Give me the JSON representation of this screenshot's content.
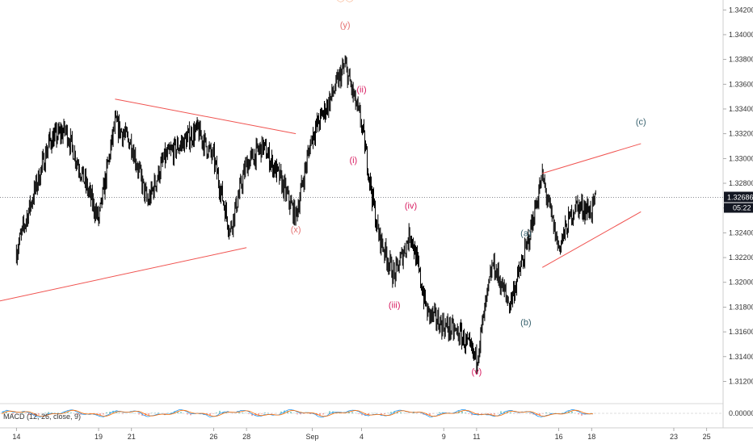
{
  "chart_data": {
    "type": "candlestick",
    "price_axis": {
      "ticks": [
        "1.34200",
        "1.34000",
        "1.33800",
        "1.33600",
        "1.33400",
        "1.33200",
        "1.33000",
        "1.32800",
        "1.32600",
        "1.32400",
        "1.32200",
        "1.32000",
        "1.31800",
        "1.31600",
        "1.31400",
        "1.31200"
      ],
      "range": [
        1.3104,
        1.3428
      ],
      "current_price": "1.32686",
      "countdown": "05:22"
    },
    "date_axis": {
      "ticks": [
        "14",
        "19",
        "21",
        "26",
        "28",
        "Sep",
        "4",
        "9",
        "11",
        "16",
        "18",
        "23",
        "25"
      ],
      "range_days": [
        "Aug 13",
        "Sep 26"
      ]
    },
    "price_path": [
      {
        "x": "Aug 14",
        "y": 1.3225
      },
      {
        "x": "Aug 16",
        "y": 1.3314
      },
      {
        "x": "Aug 17",
        "y": 1.3323
      },
      {
        "x": "Aug 19",
        "y": 1.325
      },
      {
        "x": "Aug 20",
        "y": 1.3328
      },
      {
        "x": "Aug 21",
        "y": 1.3312
      },
      {
        "x": "Aug 22",
        "y": 1.3264
      },
      {
        "x": "Aug 23",
        "y": 1.33
      },
      {
        "x": "Aug 25",
        "y": 1.3323
      },
      {
        "x": "Aug 26",
        "y": 1.33
      },
      {
        "x": "Aug 27",
        "y": 1.3242
      },
      {
        "x": "Aug 28",
        "y": 1.3295
      },
      {
        "x": "Aug 29",
        "y": 1.331
      },
      {
        "x": "Aug 30",
        "y": 1.3285
      },
      {
        "x": "Aug 31",
        "y": 1.3253
      },
      {
        "x": "Sep 1",
        "y": 1.3319
      },
      {
        "x": "Sep 2",
        "y": 1.3345
      },
      {
        "x": "Sep 3",
        "y": 1.3375
      },
      {
        "x": "Sep 4",
        "y": 1.3328
      },
      {
        "x": "Sep 5",
        "y": 1.324
      },
      {
        "x": "Sep 6",
        "y": 1.3205
      },
      {
        "x": "Sep 7",
        "y": 1.324
      },
      {
        "x": "Sep 8",
        "y": 1.3176
      },
      {
        "x": "Sep 9",
        "y": 1.3165
      },
      {
        "x": "Sep 10",
        "y": 1.3158
      },
      {
        "x": "Sep 11",
        "y": 1.3138
      },
      {
        "x": "Sep 12",
        "y": 1.3215
      },
      {
        "x": "Sep 13",
        "y": 1.3182
      },
      {
        "x": "Sep 14",
        "y": 1.3225
      },
      {
        "x": "Sep 15",
        "y": 1.3285
      },
      {
        "x": "Sep 16",
        "y": 1.3228
      },
      {
        "x": "Sep 17",
        "y": 1.3262
      },
      {
        "x": "Sep 18",
        "y": 1.3258
      },
      {
        "x": "Sep 18.3",
        "y": 1.3268
      }
    ],
    "trendlines": [
      {
        "from": {
          "x": "Aug 20",
          "y": 1.3348
        },
        "to": {
          "x": "Aug 31",
          "y": 1.332
        }
      },
      {
        "from": {
          "x": "Aug 13",
          "y": 1.3185
        },
        "to": {
          "x": "Aug 28",
          "y": 1.3228
        }
      },
      {
        "from": {
          "x": "Sep 15",
          "y": 1.3288
        },
        "to": {
          "x": "Sep 21",
          "y": 1.3312
        }
      },
      {
        "from": {
          "x": "Sep 15",
          "y": 1.3212
        },
        "to": {
          "x": "Sep 21",
          "y": 1.3257
        }
      }
    ],
    "wave_labels": [
      {
        "text": "ⓘⓘ",
        "x": "Sep 3",
        "y": 1.343,
        "color": "#f57c3c"
      },
      {
        "text": "(y)",
        "x": "Sep 3",
        "y": 1.3408,
        "color": "#e57373"
      },
      {
        "text": "(ii)",
        "x": "Sep 4",
        "y": 1.3356,
        "color": "#d81b60"
      },
      {
        "text": "(i)",
        "x": "Sep 3.5",
        "y": 1.3299,
        "color": "#d81b60"
      },
      {
        "text": "(x)",
        "x": "Aug 31",
        "y": 1.3243,
        "color": "#e57373"
      },
      {
        "text": "(iv)",
        "x": "Sep 7",
        "y": 1.3262,
        "color": "#d81b60"
      },
      {
        "text": "(iii)",
        "x": "Sep 6",
        "y": 1.3182,
        "color": "#d81b60"
      },
      {
        "text": "(v)",
        "x": "Sep 11",
        "y": 1.3128,
        "color": "#d81b60"
      },
      {
        "text": "(a)",
        "x": "Sep 14",
        "y": 1.324,
        "color": "#37616e"
      },
      {
        "text": "(b)",
        "x": "Sep 14",
        "y": 1.3168,
        "color": "#37616e"
      },
      {
        "text": "(c)",
        "x": "Sep 21",
        "y": 1.333,
        "color": "#37616e"
      }
    ],
    "indicator": {
      "label": "MACD (12, 26, close, 9)",
      "value_tick": "0.00000"
    },
    "colors": {
      "candles": "#000000",
      "trendline": "#f05350",
      "price_badge": "#131722",
      "axis_text": "#333333"
    }
  }
}
